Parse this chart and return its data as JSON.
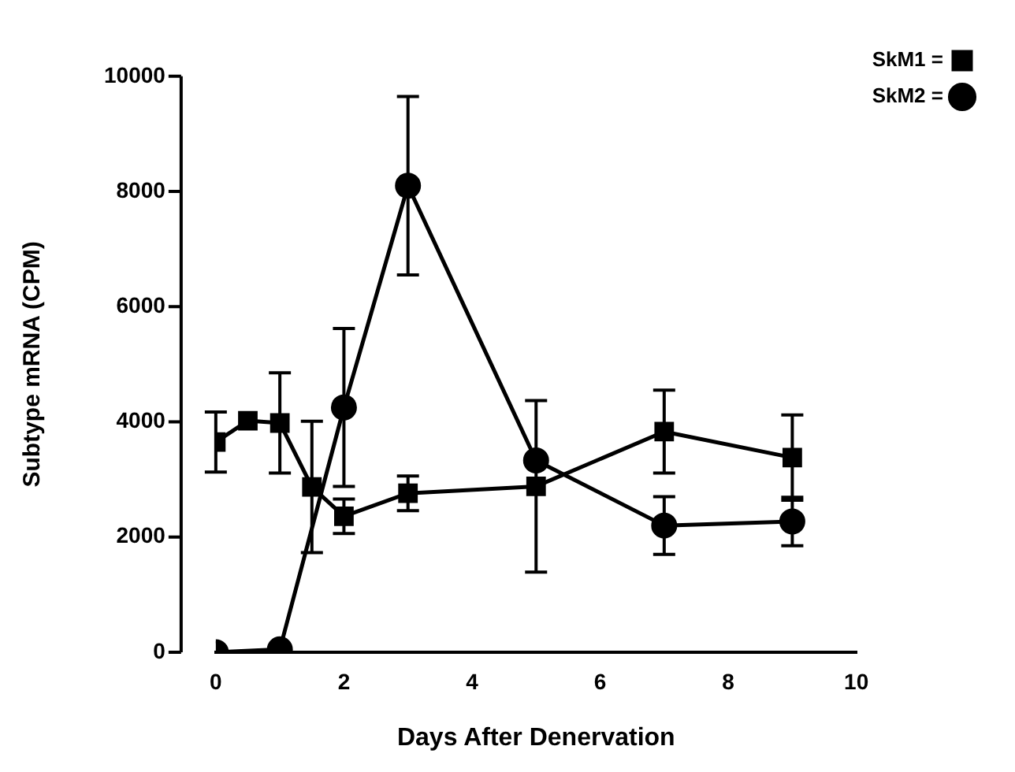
{
  "chart_data": {
    "type": "line",
    "xlabel": "Days After Denervation",
    "ylabel": "Subtype mRNA (CPM)",
    "xlim": [
      0,
      10
    ],
    "xticks": [
      0,
      2,
      4,
      6,
      8,
      10
    ],
    "ylim": [
      0,
      10000
    ],
    "yticks": [
      0,
      2000,
      4000,
      6000,
      8000,
      10000
    ],
    "grid": false,
    "legend": "top right",
    "line_style": "solid",
    "series": [
      {
        "name": "SkM1 =",
        "color": "#000000",
        "marker": "square",
        "x": [
          0,
          0.5,
          1,
          1.5,
          2,
          3,
          5,
          7,
          9
        ],
        "values": [
          3650,
          4020,
          3980,
          2870,
          2360,
          2760,
          2880,
          3830,
          3380
        ],
        "errors": [
          520,
          null,
          870,
          1140,
          300,
          300,
          1490,
          720,
          740
        ]
      },
      {
        "name": "SkM2 =",
        "color": "#000000",
        "marker": "circle",
        "x": [
          0,
          1,
          2,
          3,
          5,
          7,
          9
        ],
        "values": [
          0,
          50,
          4250,
          8100,
          3330,
          2200,
          2270
        ],
        "errors": [
          null,
          null,
          1370,
          1550,
          null,
          500,
          420
        ]
      }
    ]
  }
}
